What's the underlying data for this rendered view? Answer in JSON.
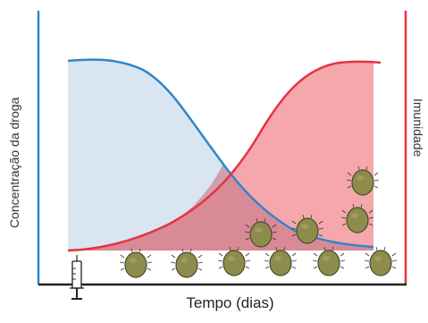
{
  "labels": {
    "y_left": "Concentração da droga",
    "y_right": "Imunidade",
    "x": "Tempo (dias)"
  },
  "colors": {
    "drug_curve": "#2f86cc",
    "drug_fill": "#d9e6f2",
    "immunity_curve": "#e43340",
    "immunity_fill": "#f4a0a4",
    "left_axis": "#2f86cc",
    "right_axis": "#e43340",
    "x_axis": "#222222",
    "pathogen_body": "#8e8c4c",
    "pathogen_outline": "#4a4a2a"
  },
  "icons": {
    "syringe": "syringe-icon",
    "pathogen": "parasite-icon"
  },
  "pathogen_count": 11
}
